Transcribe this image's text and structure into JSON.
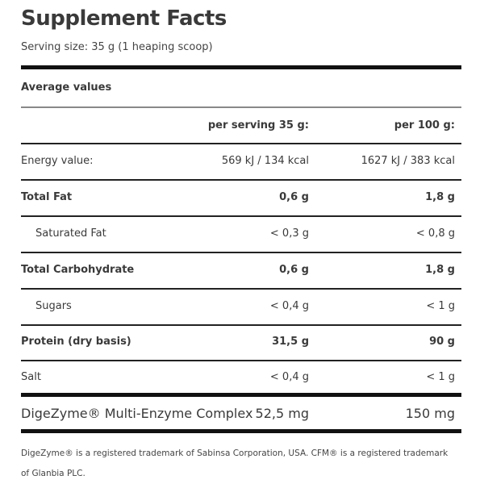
{
  "title": "Supplement Facts",
  "serving_size": "Serving size: 35 g (1 heaping scoop)",
  "section_label": "Average values",
  "columns": {
    "per_serving": "per serving 35 g:",
    "per_100g": "per 100 g:"
  },
  "rows": [
    {
      "label": "Energy value:",
      "per_serving": "569 kJ / 134 kcal",
      "per_100g": "1627 kJ / 383 kcal"
    },
    {
      "label": "Total Fat",
      "per_serving": "0,6 g",
      "per_100g": "1,8 g"
    },
    {
      "label": "Saturated Fat",
      "per_serving": "< 0,3 g",
      "per_100g": "< 0,8 g"
    },
    {
      "label": "Total Carbohydrate",
      "per_serving": "0,6 g",
      "per_100g": "1,8 g"
    },
    {
      "label": "Sugars",
      "per_serving": "< 0,4 g",
      "per_100g": "< 1 g"
    },
    {
      "label": "Protein (dry basis)",
      "per_serving": "31,5 g",
      "per_100g": "90 g"
    },
    {
      "label": "Salt",
      "per_serving": "< 0,4 g",
      "per_100g": "< 1 g"
    }
  ],
  "enzyme": {
    "label": "DigeZyme® Multi-Enzyme Complex",
    "per_serving": "52,5 mg",
    "per_100g": "150 mg"
  },
  "footnote": "DigeZyme® is a registered trademark of Sabinsa Corporation, USA. CFM® is a registered trademark of Glanbia PLC."
}
